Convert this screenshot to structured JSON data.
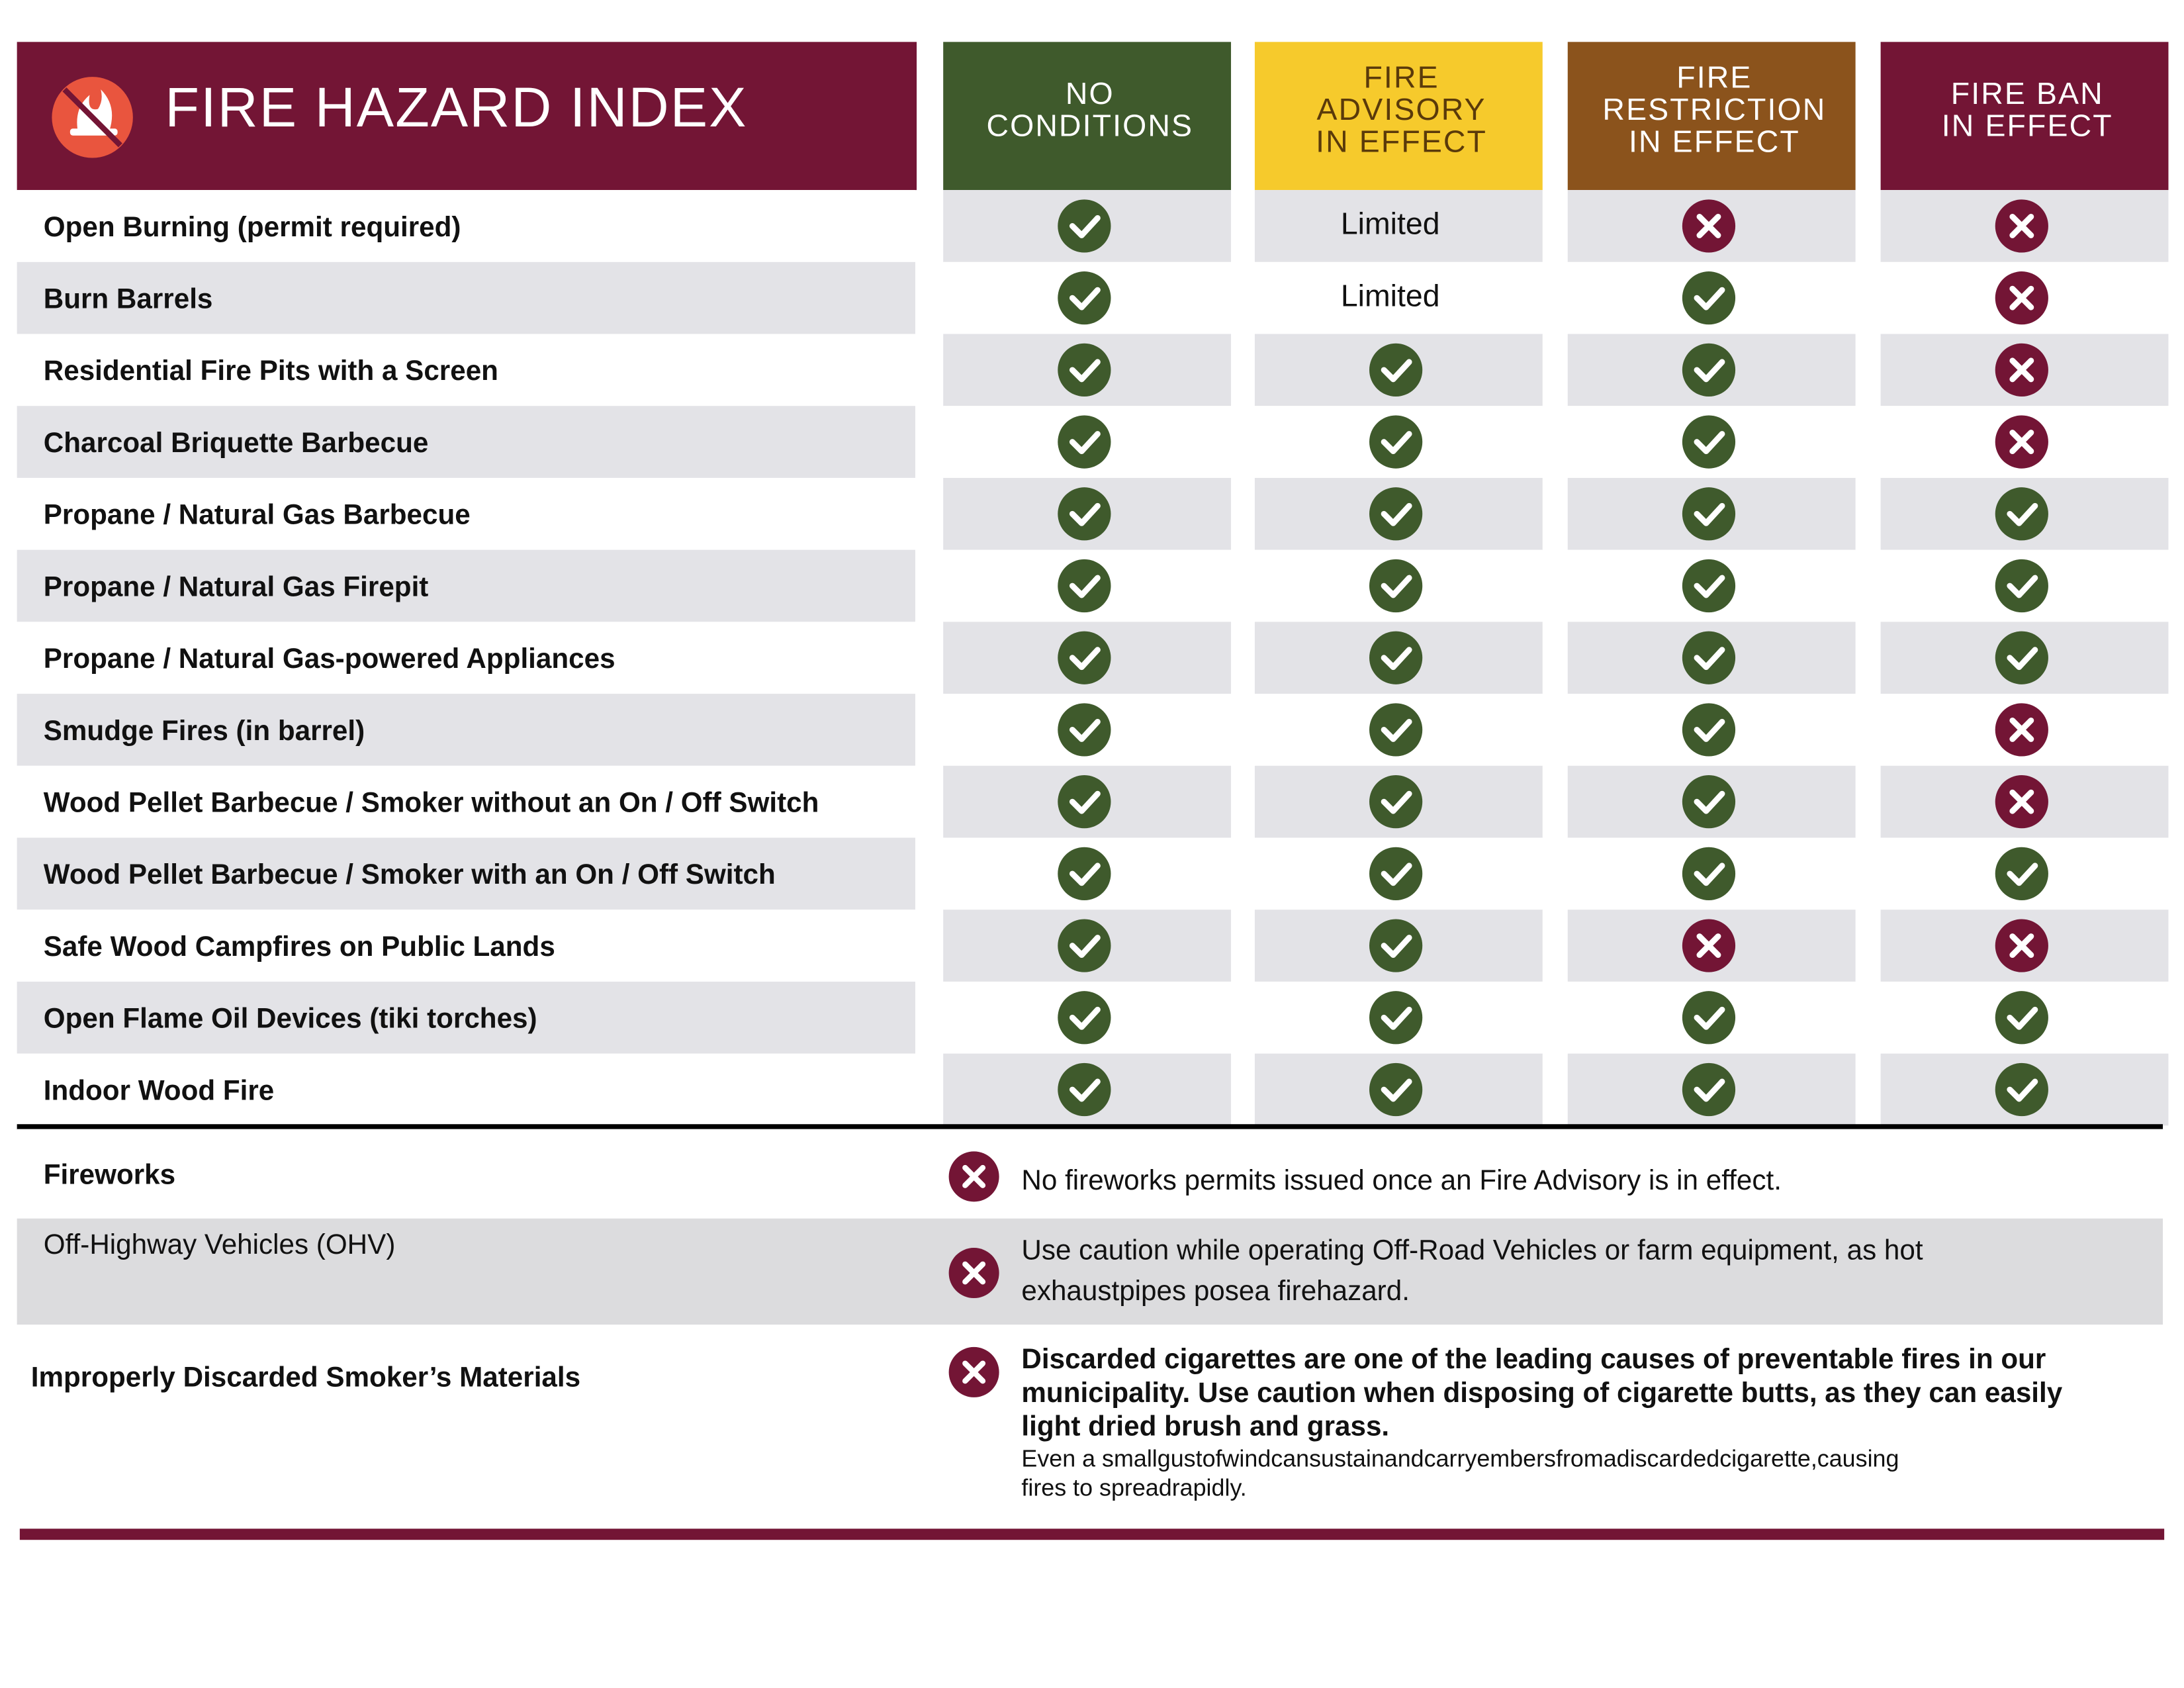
{
  "header": {
    "title": "FIRE HAZARD INDEX",
    "columns": [
      {
        "lines": [
          "NO",
          "CONDITIONS"
        ],
        "color": "#3f5a2c",
        "text_color": "#ffffff"
      },
      {
        "lines": [
          "FIRE",
          "ADVISORY",
          "IN EFFECT"
        ],
        "color": "#f6ca2c",
        "text_color": "#5a3a0a"
      },
      {
        "lines": [
          "FIRE",
          "RESTRICTION",
          "IN EFFECT"
        ],
        "color": "#8b531c",
        "text_color": "#ffffff"
      },
      {
        "lines": [
          "FIRE BAN",
          "IN EFFECT"
        ],
        "color": "#731535",
        "text_color": "#ffffff"
      }
    ]
  },
  "table": {
    "rows": [
      {
        "label": "Open Burning (permit required)",
        "cells": [
          true,
          "Limited",
          false,
          false
        ]
      },
      {
        "label": "Burn Barrels",
        "cells": [
          true,
          "Limited",
          true,
          false
        ]
      },
      {
        "label": "Residential Fire Pits with a Screen",
        "cells": [
          true,
          true,
          true,
          false
        ]
      },
      {
        "label": "Charcoal Briquette Barbecue",
        "cells": [
          true,
          true,
          true,
          false
        ]
      },
      {
        "label": "Propane / Natural Gas Barbecue",
        "cells": [
          true,
          true,
          true,
          true
        ]
      },
      {
        "label": "Propane / Natural Gas Firepit",
        "cells": [
          true,
          true,
          true,
          true
        ]
      },
      {
        "label": "Propane / Natural Gas-powered Appliances",
        "cells": [
          true,
          true,
          true,
          true
        ]
      },
      {
        "label": "Smudge Fires (in barrel)",
        "cells": [
          true,
          true,
          true,
          false
        ]
      },
      {
        "label": "Wood Pellet Barbecue / Smoker without an On / Off Switch",
        "cells": [
          true,
          true,
          true,
          false
        ]
      },
      {
        "label": "Wood Pellet Barbecue / Smoker with an On / Off Switch",
        "cells": [
          true,
          true,
          true,
          true
        ]
      },
      {
        "label": "Safe Wood Campfires on Public Lands",
        "cells": [
          true,
          true,
          false,
          false
        ]
      },
      {
        "label": "Open Flame Oil Devices (tiki torches)",
        "cells": [
          true,
          true,
          true,
          true
        ]
      },
      {
        "label": "Indoor Wood Fire",
        "cells": [
          true,
          true,
          true,
          true
        ]
      }
    ]
  },
  "notes": [
    {
      "label": "Fireworks",
      "lines": [
        "No fireworks permits issued once an Fire Advisory is in effect."
      ]
    },
    {
      "label": "Off-Highway Vehicles (OHV)",
      "lines": [
        "Use caution while operating Off-Road Vehicles or farm equipment, as hot",
        "exhaustpipes posea firehazard."
      ]
    },
    {
      "label": "Improperly Discarded Smoker’s Materials",
      "lines": [
        "Discarded cigarettes are one of the leading causes of preventable fires in our",
        "municipality. Use caution when disposing of cigarette butts, as they can easily",
        "light dried brush and grass."
      ],
      "small_lines": [
        "Even a smallgustofwindcansustainandcarryembersfromadiscardedcigarette,causing",
        "fires to spreadrapidly."
      ]
    }
  ]
}
